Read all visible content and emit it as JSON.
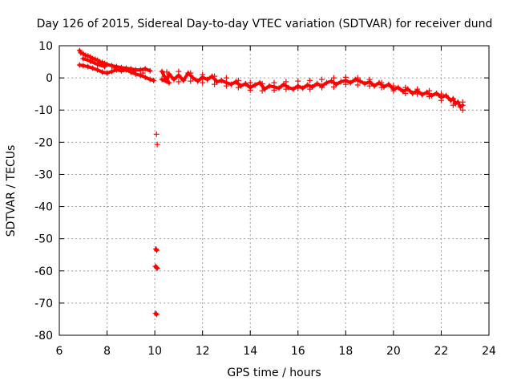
{
  "chart_data": {
    "type": "scatter",
    "title": "Day 126 of 2015, Sidereal Day-to-day VTEC variation (SDTVAR) for receiver dund",
    "xlabel": "GPS time / hours",
    "ylabel": "SDTVAR / TECUs",
    "xlim": [
      6,
      24
    ],
    "ylim": [
      -80,
      10
    ],
    "xticks": [
      6,
      8,
      10,
      12,
      14,
      16,
      18,
      20,
      22,
      24
    ],
    "yticks": [
      10,
      0,
      -10,
      -20,
      -30,
      -40,
      -50,
      -60,
      -70,
      -80
    ],
    "grid": true,
    "marker": "+",
    "series": [
      {
        "name": "SDTVAR",
        "color": "#ff0000",
        "points": [
          [
            6.85,
            8.5
          ],
          [
            6.9,
            7.8
          ],
          [
            7.0,
            7.5
          ],
          [
            7.1,
            7.0
          ],
          [
            7.2,
            6.8
          ],
          [
            7.3,
            6.5
          ],
          [
            7.4,
            6.0
          ],
          [
            7.5,
            5.8
          ],
          [
            7.6,
            5.5
          ],
          [
            7.7,
            5.0
          ],
          [
            7.8,
            4.8
          ],
          [
            7.9,
            4.5
          ],
          [
            8.0,
            4.2
          ],
          [
            8.2,
            3.8
          ],
          [
            8.4,
            3.5
          ],
          [
            8.6,
            3.2
          ],
          [
            8.8,
            3.0
          ],
          [
            9.0,
            2.8
          ],
          [
            9.2,
            2.5
          ],
          [
            9.4,
            2.5
          ],
          [
            9.6,
            2.8
          ],
          [
            9.8,
            2.2
          ],
          [
            6.85,
            4.0
          ],
          [
            7.0,
            3.8
          ],
          [
            7.2,
            3.5
          ],
          [
            7.4,
            3.0
          ],
          [
            7.6,
            2.5
          ],
          [
            7.8,
            1.8
          ],
          [
            8.0,
            1.5
          ],
          [
            8.2,
            2.0
          ],
          [
            8.4,
            2.5
          ],
          [
            8.6,
            2.2
          ],
          [
            8.8,
            2.5
          ],
          [
            9.0,
            1.8
          ],
          [
            9.2,
            1.2
          ],
          [
            9.4,
            0.8
          ],
          [
            9.6,
            0.2
          ],
          [
            9.8,
            -0.5
          ],
          [
            9.95,
            -0.8
          ],
          [
            7.0,
            6.0
          ],
          [
            7.3,
            5.2
          ],
          [
            7.6,
            4.2
          ],
          [
            7.9,
            3.5
          ],
          [
            8.3,
            3.0
          ],
          [
            8.7,
            2.6
          ],
          [
            9.1,
            2.0
          ],
          [
            9.5,
            1.5
          ],
          [
            10.07,
            -17.5
          ],
          [
            10.1,
            -20.7
          ],
          [
            10.05,
            -53.2
          ],
          [
            10.08,
            -53.6
          ],
          [
            10.03,
            -58.6
          ],
          [
            10.07,
            -58.9
          ],
          [
            10.1,
            -59.2
          ],
          [
            10.03,
            -73.2
          ],
          [
            10.08,
            -73.5
          ],
          [
            10.3,
            2.0
          ],
          [
            10.4,
            0.5
          ],
          [
            10.5,
            -1.0
          ],
          [
            10.6,
            1.2
          ],
          [
            10.8,
            -0.5
          ],
          [
            11.0,
            0.8
          ],
          [
            11.2,
            -0.8
          ],
          [
            11.4,
            1.5
          ],
          [
            11.6,
            0.0
          ],
          [
            11.8,
            -1.0
          ],
          [
            12.0,
            0.2
          ],
          [
            12.2,
            -0.5
          ],
          [
            12.4,
            0.5
          ],
          [
            12.6,
            -1.2
          ],
          [
            12.8,
            -0.8
          ],
          [
            13.0,
            -1.5
          ],
          [
            13.2,
            -2.0
          ],
          [
            13.4,
            -1.2
          ],
          [
            13.6,
            -2.5
          ],
          [
            13.8,
            -1.8
          ],
          [
            14.0,
            -3.0
          ],
          [
            14.2,
            -2.2
          ],
          [
            14.4,
            -1.5
          ],
          [
            14.6,
            -3.5
          ],
          [
            14.8,
            -2.5
          ],
          [
            15.0,
            -2.8
          ],
          [
            15.2,
            -3.2
          ],
          [
            15.4,
            -2.0
          ],
          [
            15.6,
            -3.0
          ],
          [
            15.8,
            -3.5
          ],
          [
            16.0,
            -2.5
          ],
          [
            16.2,
            -3.2
          ],
          [
            16.4,
            -2.2
          ],
          [
            16.6,
            -2.8
          ],
          [
            16.8,
            -1.8
          ],
          [
            17.0,
            -2.5
          ],
          [
            17.2,
            -1.5
          ],
          [
            17.4,
            -1.0
          ],
          [
            17.6,
            -2.0
          ],
          [
            17.8,
            -1.2
          ],
          [
            18.0,
            -0.8
          ],
          [
            18.2,
            -1.5
          ],
          [
            18.4,
            -0.5
          ],
          [
            18.6,
            -1.0
          ],
          [
            18.8,
            -1.8
          ],
          [
            19.0,
            -1.2
          ],
          [
            19.2,
            -2.5
          ],
          [
            19.4,
            -1.5
          ],
          [
            19.6,
            -2.8
          ],
          [
            19.8,
            -2.0
          ],
          [
            20.0,
            -3.5
          ],
          [
            20.2,
            -3.0
          ],
          [
            20.4,
            -4.2
          ],
          [
            20.6,
            -3.5
          ],
          [
            20.8,
            -4.8
          ],
          [
            21.0,
            -4.0
          ],
          [
            21.2,
            -5.2
          ],
          [
            21.4,
            -4.5
          ],
          [
            21.6,
            -5.5
          ],
          [
            21.8,
            -4.8
          ],
          [
            22.0,
            -6.0
          ],
          [
            22.2,
            -5.5
          ],
          [
            22.4,
            -7.0
          ],
          [
            22.5,
            -6.5
          ],
          [
            22.6,
            -8.0
          ],
          [
            22.7,
            -7.5
          ],
          [
            22.8,
            -9.0
          ],
          [
            22.9,
            -8.5
          ],
          [
            10.3,
            -0.5
          ],
          [
            10.6,
            -1.5
          ],
          [
            11.0,
            -1.2
          ],
          [
            11.5,
            -1.0
          ],
          [
            12.0,
            -1.5
          ],
          [
            12.5,
            -2.0
          ],
          [
            13.0,
            -2.5
          ],
          [
            13.5,
            -3.0
          ],
          [
            14.0,
            -3.8
          ],
          [
            14.5,
            -4.0
          ],
          [
            15.0,
            -3.8
          ],
          [
            15.5,
            -3.5
          ],
          [
            16.0,
            -3.2
          ],
          [
            16.5,
            -3.5
          ],
          [
            17.0,
            -3.0
          ],
          [
            17.5,
            -2.8
          ],
          [
            18.0,
            -2.0
          ],
          [
            18.5,
            -2.2
          ],
          [
            19.0,
            -2.5
          ],
          [
            19.5,
            -3.0
          ],
          [
            20.0,
            -4.0
          ],
          [
            20.5,
            -4.8
          ],
          [
            21.0,
            -5.0
          ],
          [
            21.5,
            -5.8
          ],
          [
            22.0,
            -7.0
          ],
          [
            22.5,
            -8.5
          ],
          [
            22.9,
            -10.0
          ],
          [
            10.5,
            1.8
          ],
          [
            11.0,
            2.0
          ],
          [
            11.5,
            1.5
          ],
          [
            12.0,
            1.0
          ],
          [
            12.5,
            0.5
          ],
          [
            13.0,
            0.0
          ],
          [
            13.5,
            -0.8
          ],
          [
            14.0,
            -1.5
          ],
          [
            14.5,
            -1.8
          ],
          [
            15.0,
            -1.5
          ],
          [
            15.5,
            -1.2
          ],
          [
            16.0,
            -1.0
          ],
          [
            16.5,
            -0.8
          ],
          [
            17.0,
            -0.5
          ],
          [
            17.5,
            0.0
          ],
          [
            18.0,
            0.2
          ],
          [
            18.5,
            0.0
          ],
          [
            19.0,
            -0.5
          ],
          [
            19.5,
            -1.5
          ],
          [
            20.0,
            -2.5
          ],
          [
            20.5,
            -3.0
          ],
          [
            21.0,
            -3.5
          ],
          [
            21.5,
            -4.0
          ],
          [
            22.0,
            -5.0
          ],
          [
            22.5,
            -6.5
          ],
          [
            22.9,
            -7.5
          ]
        ]
      }
    ]
  }
}
